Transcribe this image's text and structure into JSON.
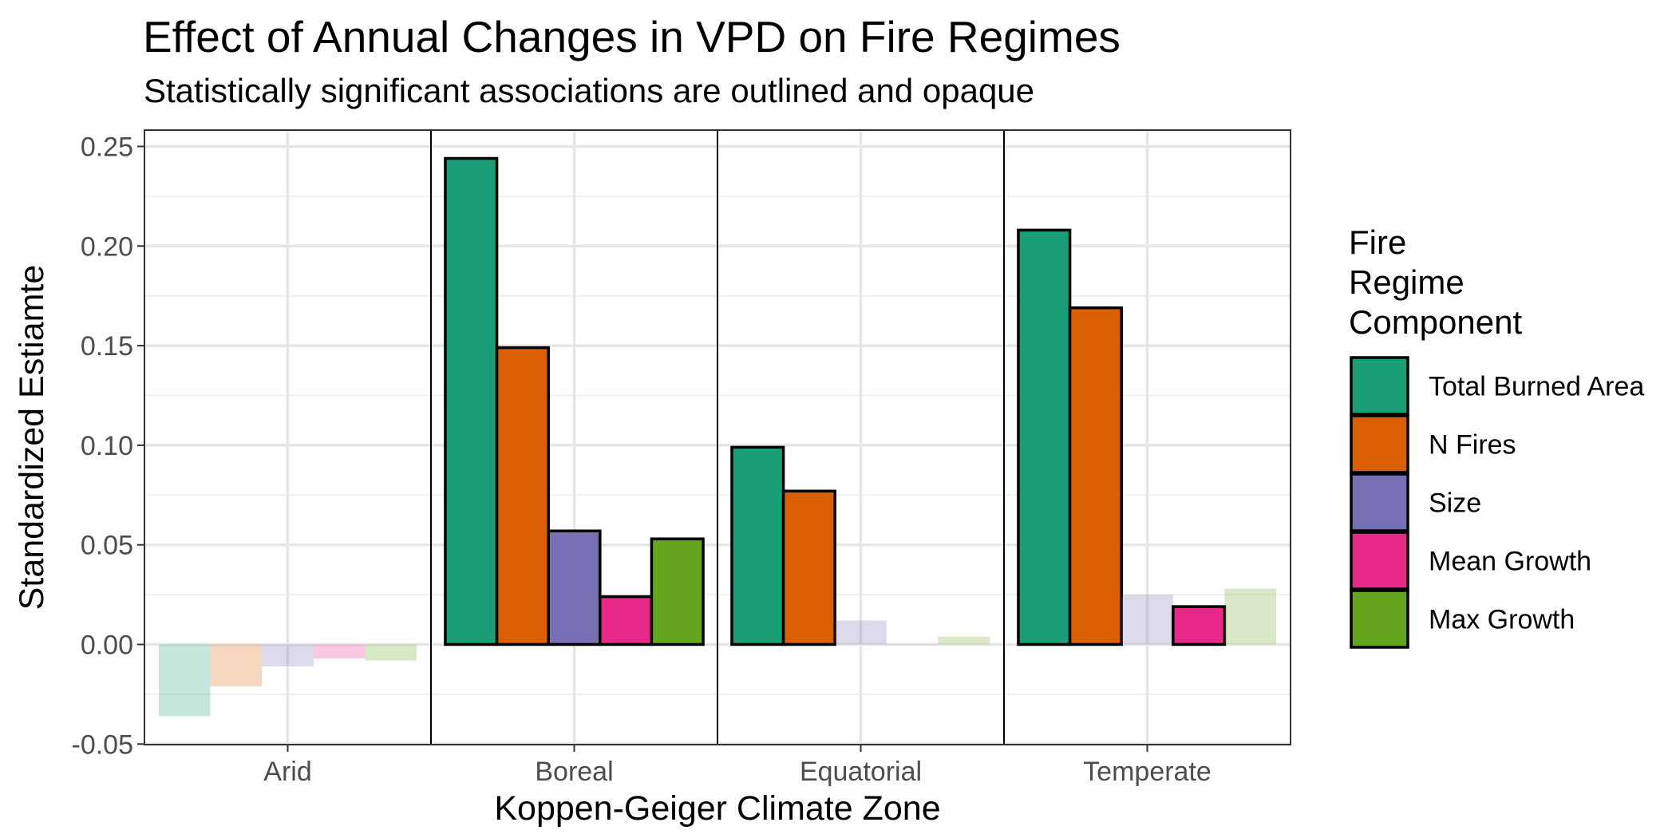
{
  "chart_data": {
    "type": "bar",
    "title": "Effect of Annual Changes in VPD on Fire Regimes",
    "subtitle": "Statistically significant associations are outlined and opaque",
    "xlabel": "Koppen-Geiger Climate Zone",
    "ylabel": "Standardized Estiamte",
    "ylim": [
      -0.05,
      0.26
    ],
    "yticks": [
      "-0.05",
      "0.00",
      "0.05",
      "0.10",
      "0.15",
      "0.20",
      "0.25"
    ],
    "ytick_values": [
      -0.05,
      0.0,
      0.05,
      0.1,
      0.15,
      0.2,
      0.25
    ],
    "categories": [
      "Arid",
      "Boreal",
      "Equatorial",
      "Temperate"
    ],
    "legend_title": "Fire\nRegime\nComponent",
    "legend_position": "right",
    "grid": true,
    "facet_by_category": true,
    "series": [
      {
        "name": "Total Burned Area",
        "color": "#1b9e77",
        "values": [
          -0.036,
          0.244,
          0.099,
          0.208
        ],
        "significant": [
          false,
          true,
          true,
          true
        ]
      },
      {
        "name": "N Fires",
        "color": "#d95f02",
        "values": [
          -0.021,
          0.149,
          0.077,
          0.169
        ],
        "significant": [
          false,
          true,
          true,
          true
        ]
      },
      {
        "name": "Size",
        "color": "#7570b3",
        "values": [
          -0.011,
          0.057,
          0.012,
          0.025
        ],
        "significant": [
          false,
          true,
          false,
          false
        ]
      },
      {
        "name": "Mean Growth",
        "color": "#e7298a",
        "values": [
          -0.007,
          0.024,
          0.0,
          0.019
        ],
        "significant": [
          false,
          true,
          false,
          true
        ]
      },
      {
        "name": "Max Growth",
        "color": "#66a61e",
        "values": [
          -0.008,
          0.053,
          0.004,
          0.028
        ],
        "significant": [
          false,
          true,
          false,
          false
        ]
      }
    ]
  }
}
